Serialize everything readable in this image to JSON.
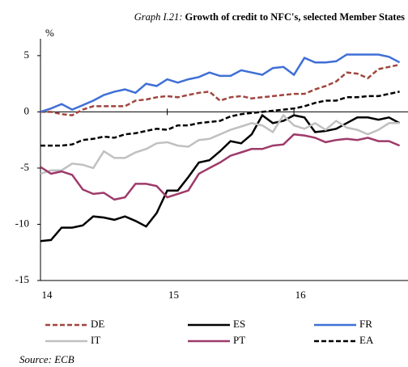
{
  "chart_data": {
    "type": "line",
    "title_label": "Graph I.21:",
    "title": "Growth of credit to NFC's,  selected Member States",
    "y_label": "%",
    "source": "Source: ECB",
    "xlim": [
      14,
      16.9
    ],
    "xticks": [
      14,
      15,
      16
    ],
    "ylim": [
      -15,
      6.5
    ],
    "yticks": [
      5,
      0,
      -5,
      -10,
      -15
    ],
    "x": [
      14,
      14.0833,
      14.1667,
      14.25,
      14.3333,
      14.4167,
      14.5,
      14.5833,
      14.6667,
      14.75,
      14.8333,
      14.9167,
      15,
      15.0833,
      15.1667,
      15.25,
      15.3333,
      15.4167,
      15.5,
      15.5833,
      15.6667,
      15.75,
      15.8333,
      15.9167,
      16,
      16.0833,
      16.1667,
      16.25,
      16.3333,
      16.4167,
      16.5,
      16.5833,
      16.6667,
      16.75,
      16.8333
    ],
    "series": [
      {
        "name": "DE",
        "color": "#a0453e",
        "dash": true,
        "values": [
          0,
          0,
          -0.2,
          -0.3,
          0.2,
          0.5,
          0.5,
          0.5,
          0.5,
          1.0,
          1.1,
          1.3,
          1.4,
          1.3,
          1.5,
          1.7,
          1.8,
          1.0,
          1.3,
          1.4,
          1.2,
          1.3,
          1.4,
          1.5,
          1.6,
          1.6,
          2.0,
          2.3,
          2.7,
          3.5,
          3.4,
          3.0,
          3.8,
          4.0,
          4.2
        ]
      },
      {
        "name": "ES",
        "color": "#000000",
        "dash": false,
        "values": [
          -11.5,
          -11.4,
          -10.3,
          -10.3,
          -10.1,
          -9.3,
          -9.4,
          -9.6,
          -9.3,
          -9.7,
          -10.2,
          -9.0,
          -7.0,
          -7.0,
          -5.8,
          -4.5,
          -4.3,
          -3.5,
          -2.6,
          -2.8,
          -2.0,
          -0.3,
          -1.0,
          -0.8,
          -0.3,
          -0.5,
          -1.8,
          -1.7,
          -1.5,
          -1.0,
          -0.5,
          -0.5,
          -0.7,
          -0.5,
          -1.0
        ]
      },
      {
        "name": "FR",
        "color": "#3f6fd6",
        "dash": false,
        "values": [
          0,
          0.3,
          0.7,
          0.2,
          0.6,
          1.0,
          1.5,
          1.8,
          2.0,
          1.7,
          2.5,
          2.3,
          2.9,
          2.6,
          2.9,
          3.1,
          3.5,
          3.2,
          3.2,
          3.7,
          3.5,
          3.3,
          3.9,
          4.0,
          3.3,
          4.8,
          4.4,
          4.4,
          4.5,
          5.1,
          5.1,
          5.1,
          5.1,
          4.9,
          4.4
        ]
      },
      {
        "name": "IT",
        "color": "#c0c0c0",
        "dash": false,
        "values": [
          -5.5,
          -5.2,
          -5.2,
          -4.6,
          -4.7,
          -5.0,
          -3.5,
          -4.1,
          -4.1,
          -3.6,
          -3.3,
          -2.8,
          -2.7,
          -3.0,
          -3.1,
          -2.5,
          -2.4,
          -2.0,
          -1.6,
          -1.3,
          -1.0,
          -1.2,
          -1.8,
          -0.3,
          -1.2,
          -1.5,
          -1.0,
          -1.6,
          -0.8,
          -1.4,
          -1.6,
          -2.0,
          -1.6,
          -1.0,
          -1.0
        ]
      },
      {
        "name": "PT",
        "color": "#9e3a6a",
        "dash": false,
        "values": [
          -4.9,
          -5.5,
          -5.3,
          -5.6,
          -6.9,
          -7.3,
          -7.2,
          -7.8,
          -7.6,
          -6.4,
          -6.4,
          -6.6,
          -7.6,
          -7.3,
          -7.0,
          -5.5,
          -5.0,
          -4.5,
          -3.9,
          -3.6,
          -3.3,
          -3.3,
          -3.0,
          -2.9,
          -2.0,
          -2.1,
          -2.3,
          -2.7,
          -2.5,
          -2.4,
          -2.5,
          -2.3,
          -2.6,
          -2.6,
          -3.0
        ]
      },
      {
        "name": "EA",
        "color": "#000000",
        "dash": true,
        "values": [
          -3.0,
          -3.0,
          -3.0,
          -2.9,
          -2.5,
          -2.4,
          -2.2,
          -2.3,
          -2.0,
          -1.9,
          -1.7,
          -1.5,
          -1.6,
          -1.2,
          -1.2,
          -1.0,
          -0.9,
          -0.8,
          -0.4,
          -0.2,
          -0.1,
          0,
          0.1,
          0.2,
          0.3,
          0.5,
          0.8,
          1.0,
          1.0,
          1.3,
          1.3,
          1.4,
          1.4,
          1.6,
          1.8
        ]
      }
    ]
  }
}
